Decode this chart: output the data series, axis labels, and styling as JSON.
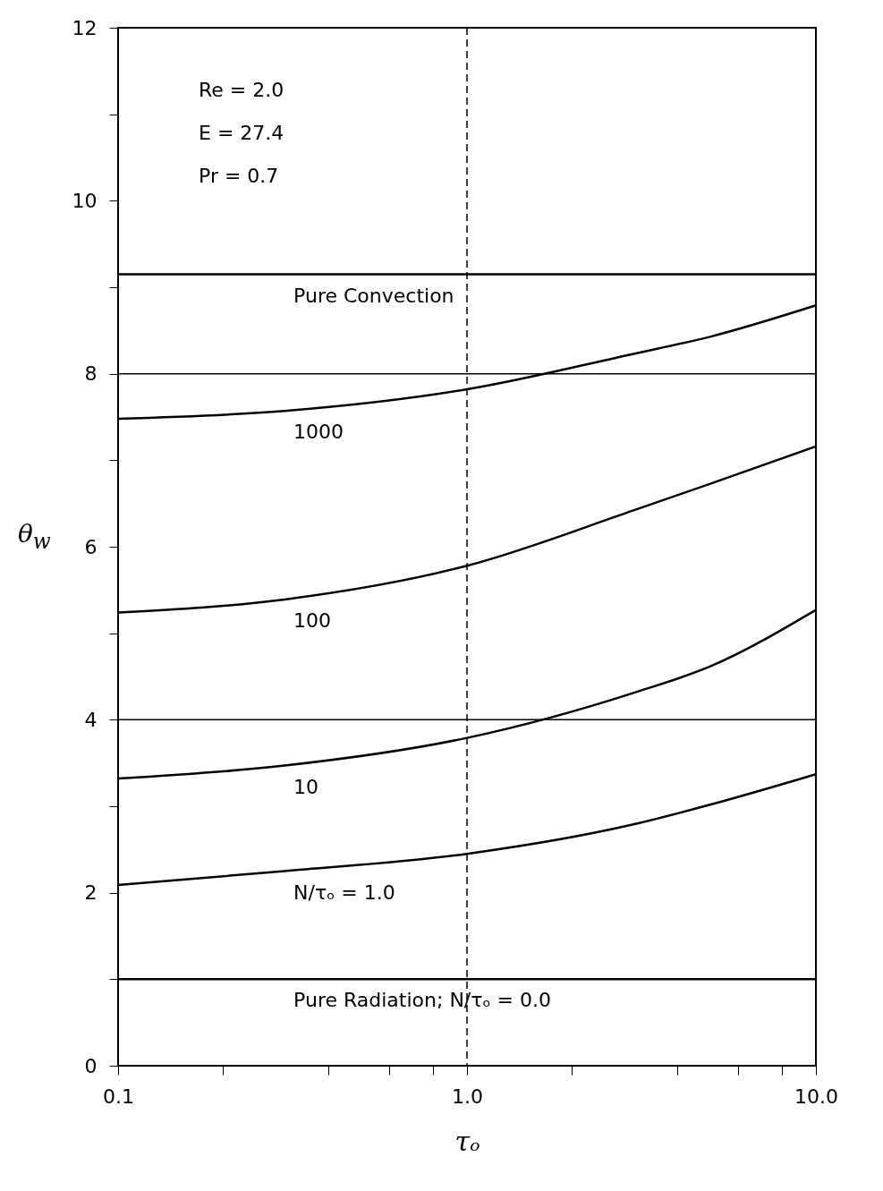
{
  "chart_data": {
    "type": "line",
    "xlabel": "τₒ",
    "ylabel": "θ$_{w}$",
    "annotations": [
      "Re = 2.0",
      "E = 27.4",
      "Pr = 0.7"
    ],
    "xlim": [
      0.1,
      10
    ],
    "ylim": [
      0,
      12
    ],
    "log": "x",
    "xticks": [
      {
        "value": 0.1,
        "label": "0.1"
      },
      {
        "value": 0.2,
        "label": null
      },
      {
        "value": 0.4,
        "label": null
      },
      {
        "value": 0.6,
        "label": null
      },
      {
        "value": 0.8,
        "label": null
      },
      {
        "value": 1,
        "label": "1.0"
      },
      {
        "value": 2,
        "label": null
      },
      {
        "value": 4,
        "label": null
      },
      {
        "value": 6,
        "label": null
      },
      {
        "value": 8,
        "label": null
      },
      {
        "value": 10,
        "label": "10.0"
      }
    ],
    "yticks": [
      0,
      {
        "value": 1,
        "label": null
      },
      2,
      {
        "value": 3,
        "label": null
      },
      4,
      {
        "value": 5,
        "label": null
      },
      6,
      {
        "value": 7,
        "label": null
      },
      8,
      {
        "value": 9,
        "label": null
      },
      10,
      {
        "value": 11,
        "label": null
      },
      12
    ],
    "ref_lines": [
      {
        "axis": "y",
        "value": 4,
        "color": "#000000"
      },
      {
        "axis": "y",
        "value": 8,
        "color": "#000000"
      },
      {
        "axis": "x",
        "value": 1,
        "color": "#000000",
        "line_style": "dashed"
      }
    ],
    "grid": false,
    "legend": false,
    "line_style": "solid",
    "x": [
      0.1,
      0.3,
      1,
      3,
      5,
      10
    ],
    "series": [
      {
        "name": "Pure Convection",
        "color": "#000000",
        "values": [
          9.15,
          9.15,
          9.15,
          9.15,
          9.15,
          9.15
        ]
      },
      {
        "name": "1000",
        "color": "#000000",
        "values": [
          7.48,
          7.57,
          7.82,
          8.23,
          8.43,
          8.79
        ]
      },
      {
        "name": "100",
        "color": "#000000",
        "values": [
          5.24,
          5.39,
          5.78,
          6.42,
          6.73,
          7.16
        ]
      },
      {
        "name": "10",
        "color": "#000000",
        "values": [
          3.32,
          3.47,
          3.79,
          4.31,
          4.62,
          5.27
        ]
      },
      {
        "name": "N/τₒ = 1.0",
        "color": "#000000",
        "values": [
          2.09,
          2.25,
          2.45,
          2.79,
          3.02,
          3.37
        ]
      },
      {
        "name": "Pure Radiation; N/τₒ = 0.0",
        "color": "#000000",
        "values": [
          1.0,
          1.0,
          1.0,
          1.0,
          1.0,
          1.0
        ]
      }
    ]
  }
}
